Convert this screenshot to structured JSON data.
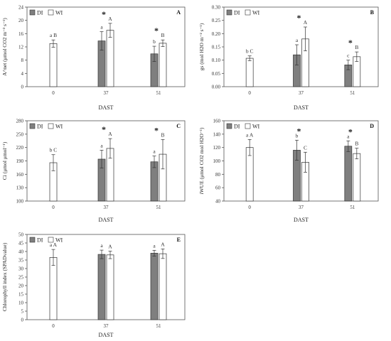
{
  "colors": {
    "DI": "#7f7f7f",
    "WI": "#ffffff",
    "axis": "#555555",
    "err": "#333333"
  },
  "legend": {
    "DI": "DI",
    "WI": "WI"
  },
  "chart_data": [
    {
      "type": "bar",
      "panel": "A",
      "panel_label": "A",
      "xlabel": "DAST",
      "ylabel": "A^net (μmol CO2 m⁻² s⁻¹)",
      "ylabel_parts": {
        "pre": "A",
        "sup": "net",
        "post": " (μmol CO",
        "sub": "2",
        "tail": " m⁻² s⁻¹)"
      },
      "ylim": [
        0,
        24
      ],
      "yticks": [
        "0",
        "4",
        "8",
        "12",
        "16",
        "20",
        "24"
      ],
      "categories": [
        "0",
        "37",
        "51"
      ],
      "series": [
        {
          "name": "DI",
          "values": [
            null,
            13.8,
            9.9
          ],
          "errors": [
            null,
            2.8,
            2.3
          ]
        },
        {
          "name": "WI",
          "values": [
            13.0,
            17.0,
            13.1
          ],
          "errors": [
            1.1,
            2.1,
            1.0
          ]
        }
      ],
      "letters": [
        {
          "cat": 0,
          "series": "WI",
          "text": "a  B"
        },
        {
          "cat": 1,
          "series": "DI",
          "text": "a"
        },
        {
          "cat": 1,
          "series": "WI",
          "text": "A"
        },
        {
          "cat": 2,
          "series": "DI",
          "text": "b"
        },
        {
          "cat": 2,
          "series": "WI",
          "text": "B"
        }
      ],
      "stars": [
        1,
        2
      ]
    },
    {
      "type": "bar",
      "panel": "B",
      "panel_label": "B",
      "xlabel": "DAST",
      "ylabel": "gs (mol H2O m⁻² s⁻¹)",
      "ylabel_parts": {
        "pre": "g",
        "sub0": "s",
        "post": " (mol H",
        "sub": "2",
        "tail": "O m⁻² s⁻¹)"
      },
      "ylim": [
        0,
        0.3
      ],
      "yticks": [
        "0.00",
        "0.05",
        "0.10",
        "0.15",
        "0.20",
        "0.25",
        "0.30"
      ],
      "categories": [
        "0",
        "37",
        "51"
      ],
      "series": [
        {
          "name": "DI",
          "values": [
            null,
            0.12,
            0.082
          ],
          "errors": [
            null,
            0.038,
            0.018
          ]
        },
        {
          "name": "WI",
          "values": [
            0.107,
            0.18,
            0.113
          ],
          "errors": [
            0.009,
            0.045,
            0.018
          ]
        }
      ],
      "letters": [
        {
          "cat": 0,
          "series": "WI",
          "text": "b  C"
        },
        {
          "cat": 1,
          "series": "DI",
          "text": "a"
        },
        {
          "cat": 1,
          "series": "WI",
          "text": "A"
        },
        {
          "cat": 2,
          "series": "DI",
          "text": "c"
        },
        {
          "cat": 2,
          "series": "WI",
          "text": "B"
        }
      ],
      "stars": [
        1,
        2
      ]
    },
    {
      "type": "bar",
      "panel": "C",
      "panel_label": "C",
      "xlabel": "DAST",
      "ylabel": "Ci (μmol μmol⁻¹)",
      "ylabel_parts": {
        "pre": "C",
        "sub0": "i",
        "post": " (μmol μmol",
        "sup": "-1",
        "tail": ")"
      },
      "ylim": [
        100,
        280
      ],
      "yticks": [
        "100",
        "130",
        "160",
        "190",
        "220",
        "250",
        "280"
      ],
      "categories": [
        "0",
        "37",
        "51"
      ],
      "series": [
        {
          "name": "DI",
          "values": [
            null,
            194,
            188
          ],
          "errors": [
            null,
            20,
            13
          ]
        },
        {
          "name": "WI",
          "values": [
            186,
            218,
            205
          ],
          "errors": [
            18,
            22,
            33
          ]
        }
      ],
      "letters": [
        {
          "cat": 0,
          "series": "WI",
          "text": "b  C"
        },
        {
          "cat": 1,
          "series": "DI",
          "text": "a"
        },
        {
          "cat": 1,
          "series": "WI",
          "text": "A"
        },
        {
          "cat": 2,
          "series": "DI",
          "text": "a"
        },
        {
          "cat": 2,
          "series": "WI",
          "text": "B"
        }
      ],
      "stars": [
        1,
        2
      ]
    },
    {
      "type": "bar",
      "panel": "D",
      "panel_label": "D",
      "xlabel": "DAST",
      "ylabel": "iWUE (μmol CO2 mol H2O⁻¹)",
      "ylabel_parts": {
        "pre": "iWUE (μmol CO",
        "sub": "2",
        "post": " mol H",
        "sub2": "2",
        "tail": "O⁻¹)"
      },
      "ylim": [
        40,
        160
      ],
      "yticks": [
        "40",
        "60",
        "80",
        "100",
        "120",
        "140",
        "160"
      ],
      "categories": [
        "0",
        "37",
        "51"
      ],
      "series": [
        {
          "name": "DI",
          "values": [
            null,
            116,
            122
          ],
          "errors": [
            null,
            15,
            8
          ]
        },
        {
          "name": "WI",
          "values": [
            120,
            98,
            111
          ],
          "errors": [
            12,
            15,
            8
          ]
        }
      ],
      "letters": [
        {
          "cat": 0,
          "series": "WI",
          "text": "a  A"
        },
        {
          "cat": 1,
          "series": "DI",
          "text": "b"
        },
        {
          "cat": 1,
          "series": "WI",
          "text": "C"
        },
        {
          "cat": 2,
          "series": "DI",
          "text": "a"
        },
        {
          "cat": 2,
          "series": "WI",
          "text": "B"
        }
      ],
      "stars": [
        1,
        2
      ]
    },
    {
      "type": "bar",
      "panel": "E",
      "panel_label": "E",
      "xlabel": "DAST",
      "ylabel": "Chlorophyll index (SPADvalue)",
      "ylim": [
        0,
        50
      ],
      "yticks": [
        "0",
        "5",
        "10",
        "15",
        "20",
        "25",
        "30",
        "35",
        "40",
        "45",
        "50"
      ],
      "categories": [
        "0",
        "37",
        "51"
      ],
      "series": [
        {
          "name": "DI",
          "values": [
            null,
            38.3,
            39.0
          ],
          "errors": [
            null,
            2.5,
            1.7
          ]
        },
        {
          "name": "WI",
          "values": [
            36.5,
            38.0,
            38.7
          ],
          "errors": [
            4.7,
            2.2,
            2.8
          ]
        }
      ],
      "letters": [
        {
          "cat": 0,
          "series": "WI",
          "text": "a A"
        },
        {
          "cat": 1,
          "series": "DI",
          "text": "a"
        },
        {
          "cat": 1,
          "series": "WI",
          "text": "A"
        },
        {
          "cat": 2,
          "series": "DI",
          "text": "a"
        },
        {
          "cat": 2,
          "series": "WI",
          "text": "A"
        }
      ],
      "stars": []
    }
  ]
}
